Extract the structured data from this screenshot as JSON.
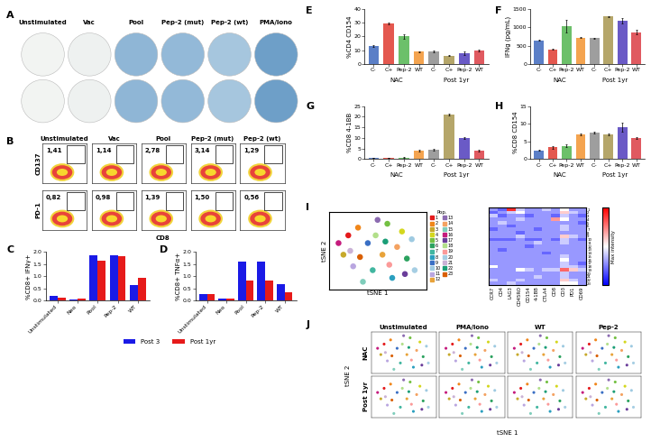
{
  "chart_data": [
    {
      "type": "image_grid",
      "label": "A",
      "columns": [
        "Unstimulated",
        "Vac",
        "Pool",
        "Pep-2 (mut)",
        "Pep-2 (wt)",
        "PMA/Iono"
      ],
      "rows": 2
    },
    {
      "type": "flow_gates",
      "label": "B",
      "xlabel": "CD8",
      "columns": [
        "Unstimulated",
        "Vac",
        "Pool",
        "Pep-2 (mut)",
        "Pep-2 (wt)"
      ],
      "rows": [
        {
          "ylabel": "CD137",
          "values": [
            1.41,
            1.14,
            2.78,
            3.14,
            1.29
          ],
          "value_labels": [
            "1,41",
            "1,14",
            "2,78",
            "3,14",
            "1,29"
          ]
        },
        {
          "ylabel": "PD-1",
          "values": [
            0.82,
            0.98,
            1.39,
            1.5,
            0.56
          ],
          "value_labels": [
            "0,82",
            "0,98",
            "1,39",
            "1,50",
            "0,56"
          ]
        }
      ]
    },
    {
      "type": "bar",
      "label": "C",
      "ylabel": "%CD8+ IFNγ+",
      "categories": [
        "Unstimulated",
        "Neo",
        "Pool",
        "Pep-2",
        "WT"
      ],
      "ylim": [
        0,
        2.0
      ],
      "yticks": [
        {
          "value": 0,
          "label": "0.0"
        },
        0.5,
        {
          "value": 1.0,
          "label": "1.0"
        },
        1.5,
        {
          "value": 2.0,
          "label": "2.0"
        }
      ],
      "legend": "upper center",
      "series": [
        {
          "name": "Post 3",
          "color": "#1a1ae6",
          "values": [
            0.18,
            0.03,
            1.87,
            1.86,
            0.65
          ]
        },
        {
          "name": "Post 1yr",
          "color": "#e61a1a",
          "values": [
            0.11,
            0.09,
            1.63,
            1.83,
            0.95
          ]
        }
      ]
    },
    {
      "type": "bar",
      "label": "D",
      "ylabel": "%CD8+ TNFα+",
      "categories": [
        "Unstimulated",
        "Neo",
        "Pool",
        "Pep-2",
        "WT"
      ],
      "ylim": [
        0,
        2.0
      ],
      "yticks": [
        {
          "value": 0,
          "label": "0.0"
        },
        0.5,
        {
          "value": 1.0,
          "label": "1.0"
        },
        1.5,
        {
          "value": 2.0,
          "label": "2.0"
        }
      ],
      "series": [
        {
          "name": "Post 3",
          "color": "#1a1ae6",
          "values": [
            0.27,
            0.1,
            1.61,
            1.6,
            0.69
          ]
        },
        {
          "name": "Post 1yr",
          "color": "#e61a1a",
          "values": [
            0.25,
            0.1,
            0.82,
            0.82,
            0.34
          ]
        }
      ]
    },
    {
      "type": "bar",
      "label": "E",
      "ylabel": "%CD4 CD154",
      "groups": [
        "NAC",
        "Post 1yr"
      ],
      "categories": [
        "C-",
        "C+",
        "Pep-2",
        "WT",
        "C-",
        "C+",
        "Pep-2",
        "WT"
      ],
      "values": [
        13,
        29.5,
        20,
        9,
        9,
        6,
        8,
        10
      ],
      "errors": [
        0.5,
        0.6,
        1.5,
        0.4,
        0.8,
        0.4,
        1.5,
        0.5
      ],
      "colors": [
        "#5b7fc7",
        "#e4584f",
        "#6cc06a",
        "#f4a450",
        "#9e9e9e",
        "#b5a66a",
        "#6a5ac6",
        "#e05a60"
      ],
      "ylim": [
        0,
        40
      ],
      "yticks": [
        0,
        10,
        20,
        30,
        40
      ]
    },
    {
      "type": "bar",
      "label": "F",
      "ylabel": "IFNg (pg/mL)",
      "groups": [
        "NAC",
        "Post 1yr"
      ],
      "categories": [
        "C-",
        "C+",
        "Pep-2",
        "WT",
        "C-",
        "C+",
        "Pep-2",
        "WT"
      ],
      "values": [
        650,
        400,
        1030,
        720,
        700,
        1290,
        1180,
        860
      ],
      "errors": [
        10,
        10,
        180,
        10,
        10,
        10,
        70,
        60
      ],
      "colors": [
        "#5b7fc7",
        "#e4584f",
        "#6cc06a",
        "#f4a450",
        "#9e9e9e",
        "#b5a66a",
        "#6a5ac6",
        "#e05a60"
      ],
      "ylim": [
        0,
        1500
      ],
      "yticks": [
        0,
        500,
        1000,
        1500
      ]
    },
    {
      "type": "bar",
      "label": "G",
      "ylabel": "%CD8 4-1BB",
      "groups": [
        "NAC",
        "Post 1yr"
      ],
      "categories": [
        "C-",
        "C+",
        "Pep-2",
        "WT",
        "C-",
        "C+",
        "Pep-2",
        "WT"
      ],
      "values": [
        0.5,
        0.5,
        0.8,
        4,
        4.5,
        21,
        10,
        4
      ],
      "errors": [
        0.1,
        0.1,
        0.2,
        0.3,
        0.4,
        0.3,
        0.5,
        0.3
      ],
      "colors": [
        "#5b7fc7",
        "#e4584f",
        "#6cc06a",
        "#f4a450",
        "#9e9e9e",
        "#b5a66a",
        "#6a5ac6",
        "#e05a60"
      ],
      "ylim": [
        0,
        25
      ],
      "yticks": [
        0,
        5,
        10,
        15,
        20,
        25
      ]
    },
    {
      "type": "bar",
      "label": "H",
      "ylabel": "%CD8 CD154",
      "groups": [
        "NAC",
        "Post 1yr"
      ],
      "categories": [
        "C-",
        "C+",
        "Pep-2",
        "WT",
        "C-",
        "C+",
        "Pep-2",
        "WT"
      ],
      "values": [
        2.5,
        3.3,
        3.8,
        7,
        7.5,
        7,
        9,
        6
      ],
      "errors": [
        0.2,
        0.3,
        0.3,
        0.3,
        0.3,
        0.3,
        1.2,
        0.3
      ],
      "colors": [
        "#5b7fc7",
        "#e4584f",
        "#6cc06a",
        "#f4a450",
        "#9e9e9e",
        "#b5a66a",
        "#6a5ac6",
        "#e05a60"
      ],
      "ylim": [
        0,
        15
      ],
      "yticks": [
        0,
        5,
        10,
        15
      ]
    },
    {
      "type": "scatter",
      "label": "I",
      "xlabel": "tSNE 1",
      "ylabel": "tSNE 2",
      "xlim": [
        -50,
        50
      ],
      "ylim": [
        -50,
        50
      ],
      "tick_labels": false,
      "legend": "upper left",
      "legend_title": "Pop.",
      "names": [
        "1",
        "2",
        "3",
        "4",
        "5",
        "6",
        "7",
        "8",
        "9",
        "10",
        "11",
        "12",
        "13",
        "14",
        "15",
        "16",
        "17",
        "18",
        "19",
        "20",
        "21",
        "22",
        "23"
      ],
      "colors": [
        "#e41a1c",
        "#f0861a",
        "#c7a92b",
        "#d4d71e",
        "#74c043",
        "#2ca25f",
        "#41b6a0",
        "#2b9fbf",
        "#3a6fc4",
        "#9ecae1",
        "#b9a6e0",
        "#e8a33a",
        "#8c6bb1",
        "#f4a261",
        "#7fcdbb",
        "#c51b7d",
        "#6a3d9a",
        "#b2df8a",
        "#fb9a99",
        "#a6cee3",
        "#cab2d6",
        "#1b9e77",
        "#d95f02"
      ],
      "x": [
        -30,
        -20,
        -35,
        25,
        10,
        30,
        -5,
        15,
        -10,
        35,
        -25,
        5,
        0,
        20,
        -15,
        -40,
        28,
        -2,
        12,
        38,
        -28,
        8,
        -18
      ],
      "y": [
        20,
        30,
        -5,
        25,
        35,
        -10,
        -25,
        -35,
        10,
        15,
        -20,
        -5,
        40,
        5,
        -40,
        10,
        -30,
        20,
        -18,
        -25,
        0,
        12,
        -8
      ]
    },
    {
      "type": "heatmap",
      "colorbar_label": "Max intensity",
      "clim": [
        0,
        1
      ],
      "xcategories": [
        "CCR7",
        "CD4",
        "LAG3",
        "CD45RO",
        "CD154",
        "4-1BB",
        "CTLA4",
        "CD8",
        "CD3",
        "PD1",
        "CD69"
      ],
      "ycategories": [
        "1",
        "2",
        "3",
        "4",
        "5",
        "6",
        "7",
        "8",
        "9",
        "10",
        "11",
        "12",
        "13",
        "14",
        "15",
        "16",
        "17",
        "18",
        "19",
        "20",
        "21",
        "22",
        "23"
      ],
      "cells": [
        [
          0.3,
          0.2,
          0.9,
          0.4,
          0.3,
          0.3,
          0.4,
          0.3,
          0.5,
          0.3,
          0.3
        ],
        [
          0.2,
          0.3,
          0.4,
          0.5,
          0.3,
          0.3,
          0.3,
          0.3,
          0.6,
          0.4,
          0.3
        ],
        [
          0.4,
          0.2,
          0.3,
          0.3,
          0.2,
          0.3,
          0.3,
          0.2,
          0.4,
          0.3,
          0.2
        ],
        [
          0.3,
          0.3,
          0.3,
          0.4,
          0.3,
          0.3,
          0.3,
          0.7,
          0.5,
          0.3,
          0.3
        ],
        [
          0.3,
          0.4,
          0.3,
          0.3,
          0.3,
          0.3,
          0.3,
          0.3,
          0.3,
          0.3,
          0.2
        ],
        [
          0.3,
          0.3,
          0.2,
          0.3,
          0.3,
          0.3,
          0.3,
          0.3,
          0.4,
          0.3,
          0.3
        ],
        [
          0.2,
          0.3,
          0.3,
          0.3,
          0.3,
          0.2,
          0.3,
          0.3,
          0.4,
          0.3,
          0.3
        ],
        [
          0.3,
          0.3,
          0.3,
          0.2,
          0.3,
          0.3,
          0.3,
          0.3,
          0.3,
          0.3,
          0.3
        ],
        [
          0.3,
          0.3,
          0.3,
          0.4,
          0.3,
          0.3,
          0.3,
          0.3,
          0.6,
          0.4,
          0.3
        ],
        [
          0.2,
          0.2,
          0.2,
          0.3,
          0.2,
          0.2,
          0.3,
          0.2,
          0.4,
          0.3,
          0.2
        ],
        [
          0.3,
          0.3,
          0.3,
          0.3,
          0.3,
          0.4,
          0.3,
          0.3,
          0.4,
          0.3,
          0.3
        ],
        [
          0.3,
          0.3,
          0.3,
          0.3,
          0.2,
          0.3,
          0.3,
          0.3,
          0.3,
          0.3,
          0.3
        ],
        [
          0.3,
          0.2,
          0.3,
          0.3,
          0.3,
          0.3,
          0.3,
          0.3,
          0.3,
          0.3,
          0.3
        ],
        [
          0.3,
          0.3,
          0.3,
          0.3,
          0.3,
          0.3,
          0.2,
          0.3,
          0.3,
          0.3,
          0.3
        ],
        [
          0.3,
          0.3,
          0.3,
          0.3,
          0.3,
          0.3,
          0.3,
          0.3,
          0.4,
          0.3,
          0.3
        ],
        [
          0.3,
          0.3,
          0.3,
          0.3,
          0.3,
          0.3,
          0.3,
          0.3,
          0.5,
          0.3,
          0.3
        ],
        [
          0.3,
          0.3,
          0.3,
          0.3,
          0.3,
          0.3,
          0.3,
          0.3,
          0.4,
          0.3,
          0.2
        ],
        [
          0.5,
          0.3,
          0.3,
          0.3,
          0.3,
          0.3,
          0.3,
          0.3,
          0.4,
          0.4,
          0.3
        ],
        [
          0.3,
          0.3,
          0.3,
          0.5,
          0.4,
          0.3,
          0.4,
          0.4,
          0.8,
          0.6,
          0.4
        ],
        [
          0.3,
          0.3,
          0.3,
          0.3,
          0.3,
          0.3,
          0.3,
          0.3,
          0.4,
          0.3,
          0.3
        ],
        [
          0.3,
          0.3,
          0.3,
          0.3,
          0.3,
          0.4,
          0.3,
          0.3,
          0.4,
          0.3,
          0.3
        ],
        [
          0.4,
          0.3,
          0.3,
          0.4,
          0.3,
          0.3,
          0.3,
          0.3,
          0.6,
          0.4,
          0.3
        ],
        [
          0.3,
          0.3,
          0.4,
          0.3,
          0.3,
          0.3,
          0.3,
          0.3,
          0.5,
          0.5,
          0.3
        ]
      ]
    },
    {
      "type": "scatter_grid",
      "label": "J",
      "xlabel": "tSNE 1",
      "ylabel": "tSNE 2",
      "columns": [
        "Unstimulated",
        "PMA/Iono",
        "WT",
        "Pep-2"
      ],
      "rows": [
        "NAC",
        "Post 1yr"
      ]
    }
  ]
}
